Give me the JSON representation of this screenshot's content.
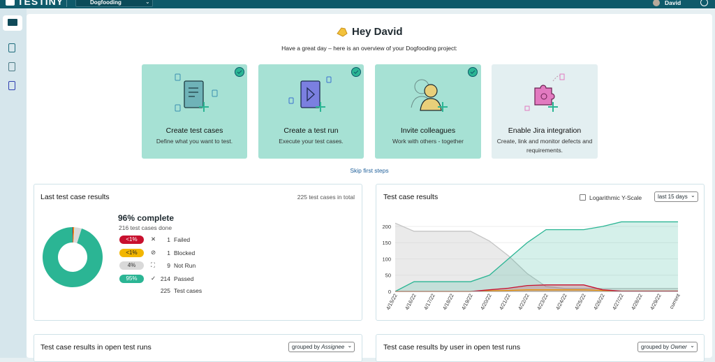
{
  "top_bar": {
    "logo": "TESTINY",
    "project": "Dogfooding",
    "user": "David"
  },
  "welcome": {
    "title": "Hey David",
    "subtitle": "Have a great day – here is an overview of your Dogfooding project:"
  },
  "steps": [
    {
      "title": "Create test cases",
      "description": "Define what you want to test."
    },
    {
      "title": "Create a test run",
      "description": "Execute your test cases."
    },
    {
      "title": "Invite colleagues",
      "description": "Work with others - together"
    },
    {
      "title": "Enable Jira integration",
      "description": "Create, link and monitor defects and requirements."
    }
  ],
  "skip": "Skip first steps",
  "last_results": {
    "title": "Last test case results",
    "total": "225 test cases in total",
    "complete": "96% complete",
    "done": "216 test cases done",
    "shares": [
      "<1%",
      "<1%",
      "4%",
      "95%"
    ],
    "total_count": "225",
    "total_label": "Test cases"
  },
  "results_chart": {
    "title": "Test case results",
    "log_scale_label": "Logarithmic Y-Scale",
    "range": "last 15 days"
  },
  "open_runs": {
    "title": "Test case results in open test runs",
    "group_prefix": "grouped by",
    "group": "Assignee"
  },
  "by_user": {
    "title": "Test case results by user in open test runs",
    "group_prefix": "grouped by",
    "group": "Owner"
  },
  "chart_data": [
    {
      "type": "donut",
      "categories": [
        "Failed",
        "Blocked",
        "Not Run",
        "Passed"
      ],
      "values": [
        1,
        1,
        9,
        214
      ],
      "colors": [
        "#c8102e",
        "#f2b600",
        "#d9d9d9",
        "#2bb594"
      ]
    },
    {
      "type": "area",
      "log_scale": false,
      "grid": true,
      "x": [
        "4/15/22",
        "4/16/22",
        "4/17/22",
        "4/18/22",
        "4/19/22",
        "4/20/22",
        "4/21/22",
        "4/22/22",
        "4/23/22",
        "4/24/22",
        "4/25/22",
        "4/26/22",
        "4/27/22",
        "4/28/22",
        "4/29/22",
        "current"
      ],
      "ylim": [
        0,
        218
      ],
      "yticks": [
        0,
        50,
        100,
        150,
        200
      ],
      "series": [
        {
          "name": "Not Run",
          "color": "#c4c4c4",
          "values": [
            210,
            185,
            185,
            185,
            185,
            155,
            110,
            55,
            15,
            9,
            9,
            9,
            9,
            9,
            9,
            9
          ]
        },
        {
          "name": "Passed",
          "color": "#2bb594",
          "values": [
            0,
            30,
            30,
            30,
            30,
            50,
            100,
            150,
            190,
            190,
            190,
            200,
            214,
            214,
            214,
            214
          ]
        },
        {
          "name": "Blocked",
          "color": "#f2b600",
          "values": [
            0,
            0,
            0,
            0,
            0,
            2,
            3,
            5,
            5,
            5,
            5,
            3,
            1,
            1,
            1,
            1
          ]
        },
        {
          "name": "Failed",
          "color": "#c8102e",
          "values": [
            0,
            0,
            0,
            0,
            0,
            5,
            10,
            18,
            20,
            20,
            20,
            5,
            1,
            1,
            1,
            1
          ]
        }
      ]
    }
  ]
}
